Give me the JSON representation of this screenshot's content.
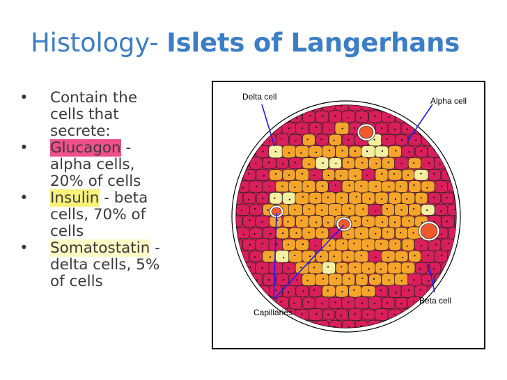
{
  "title": {
    "light": "Histology- ",
    "bold": "Islets of Langerhans"
  },
  "bullets": [
    {
      "lines": [
        "Contain the",
        "cells that",
        "secrete:"
      ]
    },
    {
      "hl": "Glucagon",
      "rest": " -",
      "lines": [
        "alpha cells,",
        "20% of cells"
      ]
    },
    {
      "hl": "Insulin",
      "rest": " - beta",
      "lines": [
        "cells, 70% of",
        "cells"
      ]
    },
    {
      "hl": "Somatostatin",
      "rest": " -",
      "lines": [
        "delta cells, 5%",
        "of cells"
      ]
    }
  ],
  "figure_labels": {
    "delta": "Delta cell",
    "alpha": "Alpha cell",
    "beta": "Beta cell",
    "capillaries": "Capillaries"
  },
  "colors": {
    "title": "#3c7ec6",
    "text": "#3a3a3a",
    "glucagon_highlight": "#f0508a",
    "insulin_highlight": "#f8f27a",
    "somatostatin_highlight": "#fcfac4",
    "beta_cells": "#f7a52a",
    "alpha_cells": "#d81e5b",
    "delta_cells": "#f5f0a0",
    "capillary": "#ee5a2e",
    "pointer_lines": "#1a1aff"
  }
}
